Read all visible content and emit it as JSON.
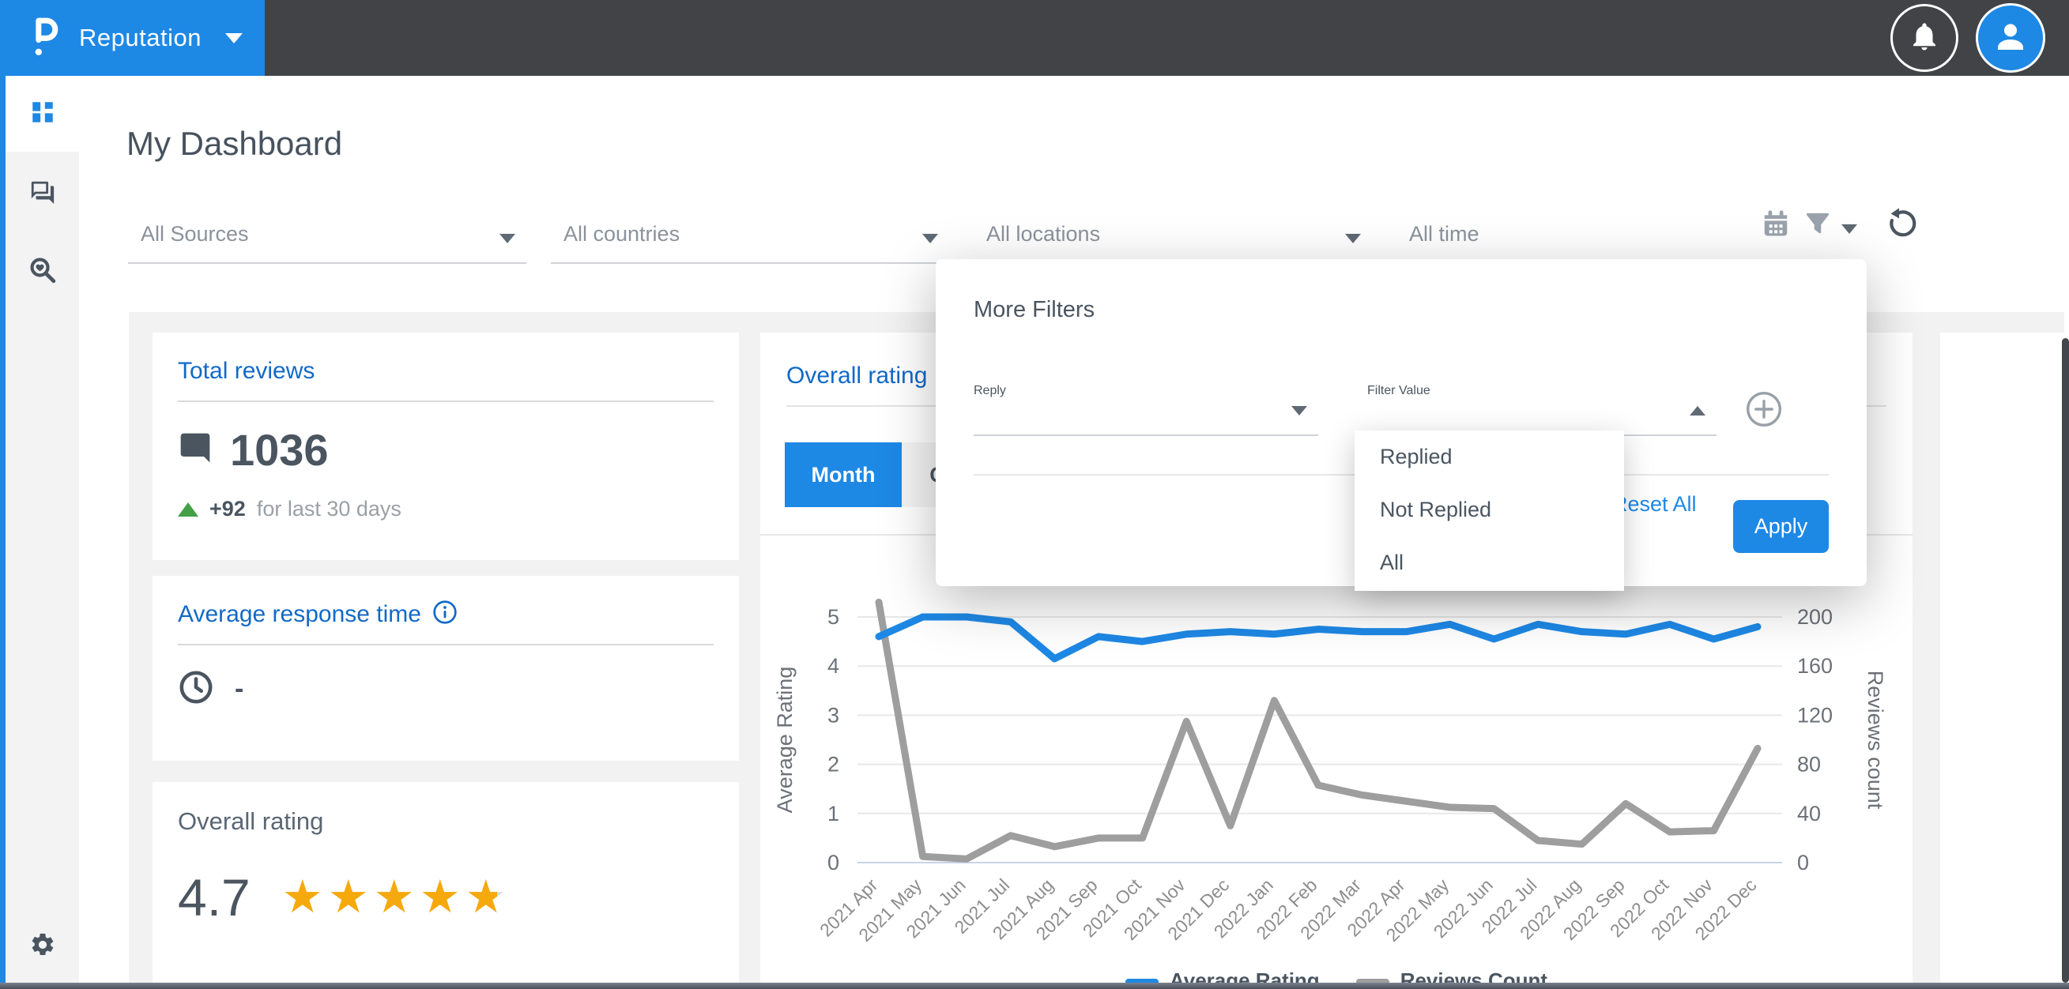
{
  "navbar": {
    "product_label": "Reputation"
  },
  "page": {
    "title": "My Dashboard"
  },
  "filters": {
    "sources": "All Sources",
    "countries": "All countries",
    "locations": "All locations",
    "time": "All time"
  },
  "more_filters": {
    "title": "More Filters",
    "field": "Reply",
    "value_placeholder": "Filter Value",
    "options": [
      "Replied",
      "Not Replied",
      "All"
    ],
    "reset": "Reset All",
    "apply": "Apply"
  },
  "cards": {
    "total_reviews": {
      "title": "Total reviews",
      "value": "1036",
      "delta": "+92",
      "delta_note": "for last 30 days"
    },
    "avg_response_time": {
      "title": "Average response time",
      "value": "-"
    },
    "overall_rating": {
      "title": "Overall rating",
      "value": "4.7",
      "stars": 4.7
    }
  },
  "chart_card": {
    "title": "Overall rating",
    "tab_month": "Month",
    "tab_quarter": "Quarter"
  },
  "chart_data": {
    "type": "line",
    "title": "Overall rating",
    "x": [
      "2021 Apr",
      "2021 May",
      "2021 Jun",
      "2021 Jul",
      "2021 Aug",
      "2021 Sep",
      "2021 Oct",
      "2021 Nov",
      "2021 Dec",
      "2022 Jan",
      "2022 Feb",
      "2022 Mar",
      "2022 Apr",
      "2022 May",
      "2022 Jun",
      "2022 Jul",
      "2022 Aug",
      "2022 Sep",
      "2022 Oct",
      "2022 Nov",
      "2022 Dec"
    ],
    "series": [
      {
        "name": "Average Rating",
        "color": "#1e88e5",
        "axis": "left",
        "values": [
          4.6,
          5,
          5,
          4.9,
          4.15,
          4.6,
          4.5,
          4.65,
          4.7,
          4.65,
          4.75,
          4.7,
          4.7,
          4.85,
          4.55,
          4.85,
          4.7,
          4.65,
          4.85,
          4.55,
          4.8
        ]
      },
      {
        "name": "Reviews Count",
        "color": "#9e9e9e",
        "axis": "right",
        "values": [
          212,
          5,
          3,
          22,
          13,
          20,
          20,
          115,
          30,
          132,
          63,
          55,
          50,
          45,
          44,
          18,
          15,
          48,
          25,
          26,
          93
        ]
      }
    ],
    "left_axis": {
      "label": "Average Rating",
      "min": 0,
      "max": 5,
      "ticks": [
        0,
        1,
        2,
        3,
        4,
        5
      ]
    },
    "right_axis": {
      "label": "Reviews count",
      "min": 0,
      "max": 200,
      "ticks": [
        0,
        40,
        80,
        120,
        160,
        200
      ]
    },
    "legend_position": "bottom",
    "grid": true
  }
}
